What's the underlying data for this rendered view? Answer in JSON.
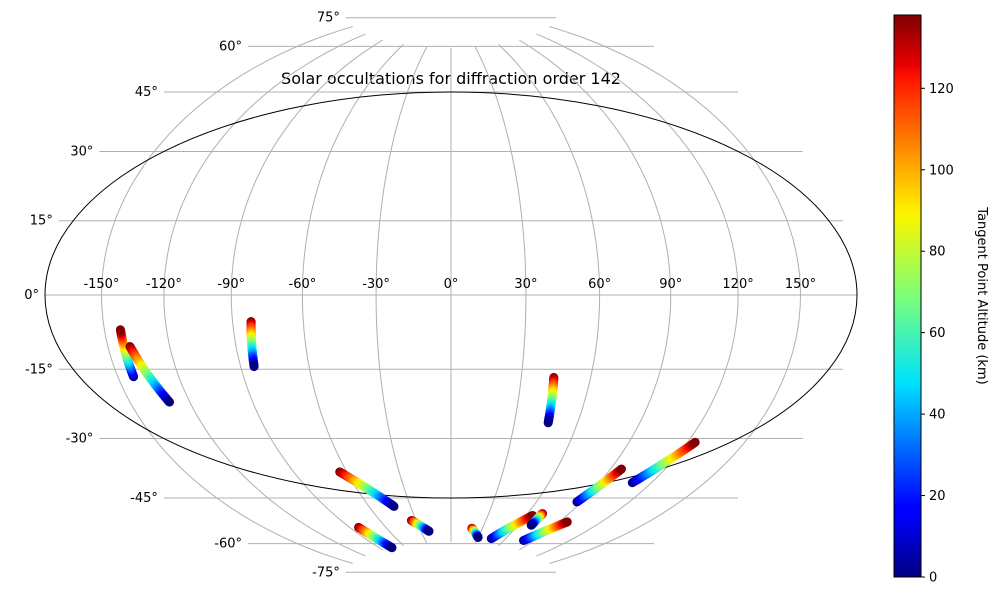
{
  "chart_data": {
    "type": "scatter",
    "projection": "hammer",
    "title": "Solar occultations for diffraction order 142",
    "grid": true,
    "lon_tick_labels": [
      "-150°",
      "-120°",
      "-90°",
      "-60°",
      "-30°",
      "0°",
      "30°",
      "60°",
      "90°",
      "120°",
      "150°"
    ],
    "lat_tick_labels": [
      "75°",
      "60°",
      "45°",
      "30°",
      "15°",
      "0°",
      "-15°",
      "-30°",
      "-45°",
      "-60°",
      "-75°"
    ],
    "lon_ticks": [
      -150,
      -120,
      -90,
      -60,
      -30,
      0,
      30,
      60,
      90,
      120,
      150
    ],
    "lat_ticks": [
      75,
      60,
      45,
      30,
      15,
      0,
      -15,
      -30,
      -45,
      -60,
      -75
    ],
    "colorbar": {
      "label": "Tangent Point Altitude (km)",
      "colormap": "jet",
      "range": [
        0,
        138
      ],
      "tick_labels": [
        "0",
        "20",
        "40",
        "60",
        "80",
        "100",
        "120"
      ],
      "ticks": [
        0,
        20,
        40,
        60,
        80,
        100,
        120
      ]
    },
    "series": [
      {
        "x": [
          -142,
          -142
        ],
        "y": [
          -19,
          -8
        ],
        "alt": [
          0,
          138
        ]
      },
      {
        "x": [
          -139,
          -130
        ],
        "y": [
          -12,
          -26
        ],
        "alt": [
          138,
          0
        ]
      },
      {
        "x": [
          -82,
          -84
        ],
        "y": [
          -7,
          -19
        ],
        "alt": [
          138,
          0
        ]
      },
      {
        "x": [
          -64,
          -42
        ],
        "y": [
          -50,
          -62
        ],
        "alt": [
          138,
          0
        ]
      },
      {
        "x": [
          -83,
          -76
        ],
        "y": [
          -67,
          -75
        ],
        "alt": [
          138,
          0
        ]
      },
      {
        "x": [
          -34,
          -22
        ],
        "y": [
          -67,
          -71
        ],
        "alt": [
          138,
          0
        ]
      },
      {
        "x": [
          20,
          30
        ],
        "y": [
          -70,
          -73
        ],
        "alt": [
          138,
          0
        ]
      },
      {
        "x": [
          44,
          46
        ],
        "y": [
          -23,
          -36
        ],
        "alt": [
          138,
          0
        ]
      },
      {
        "x": [
          45,
          65
        ],
        "y": [
          -73,
          -64
        ],
        "alt": [
          0,
          138
        ]
      },
      {
        "x": [
          71,
          71
        ],
        "y": [
          -63,
          -67
        ],
        "alt": [
          138,
          0
        ]
      },
      {
        "x": [
          80,
          96
        ],
        "y": [
          -72,
          -64
        ],
        "alt": [
          0,
          138
        ]
      },
      {
        "x": [
          87,
          96
        ],
        "y": [
          -58,
          -47
        ],
        "alt": [
          0,
          138
        ]
      },
      {
        "x": [
          109,
          124
        ],
        "y": [
          -50,
          -37
        ],
        "alt": [
          0,
          138
        ]
      }
    ]
  }
}
